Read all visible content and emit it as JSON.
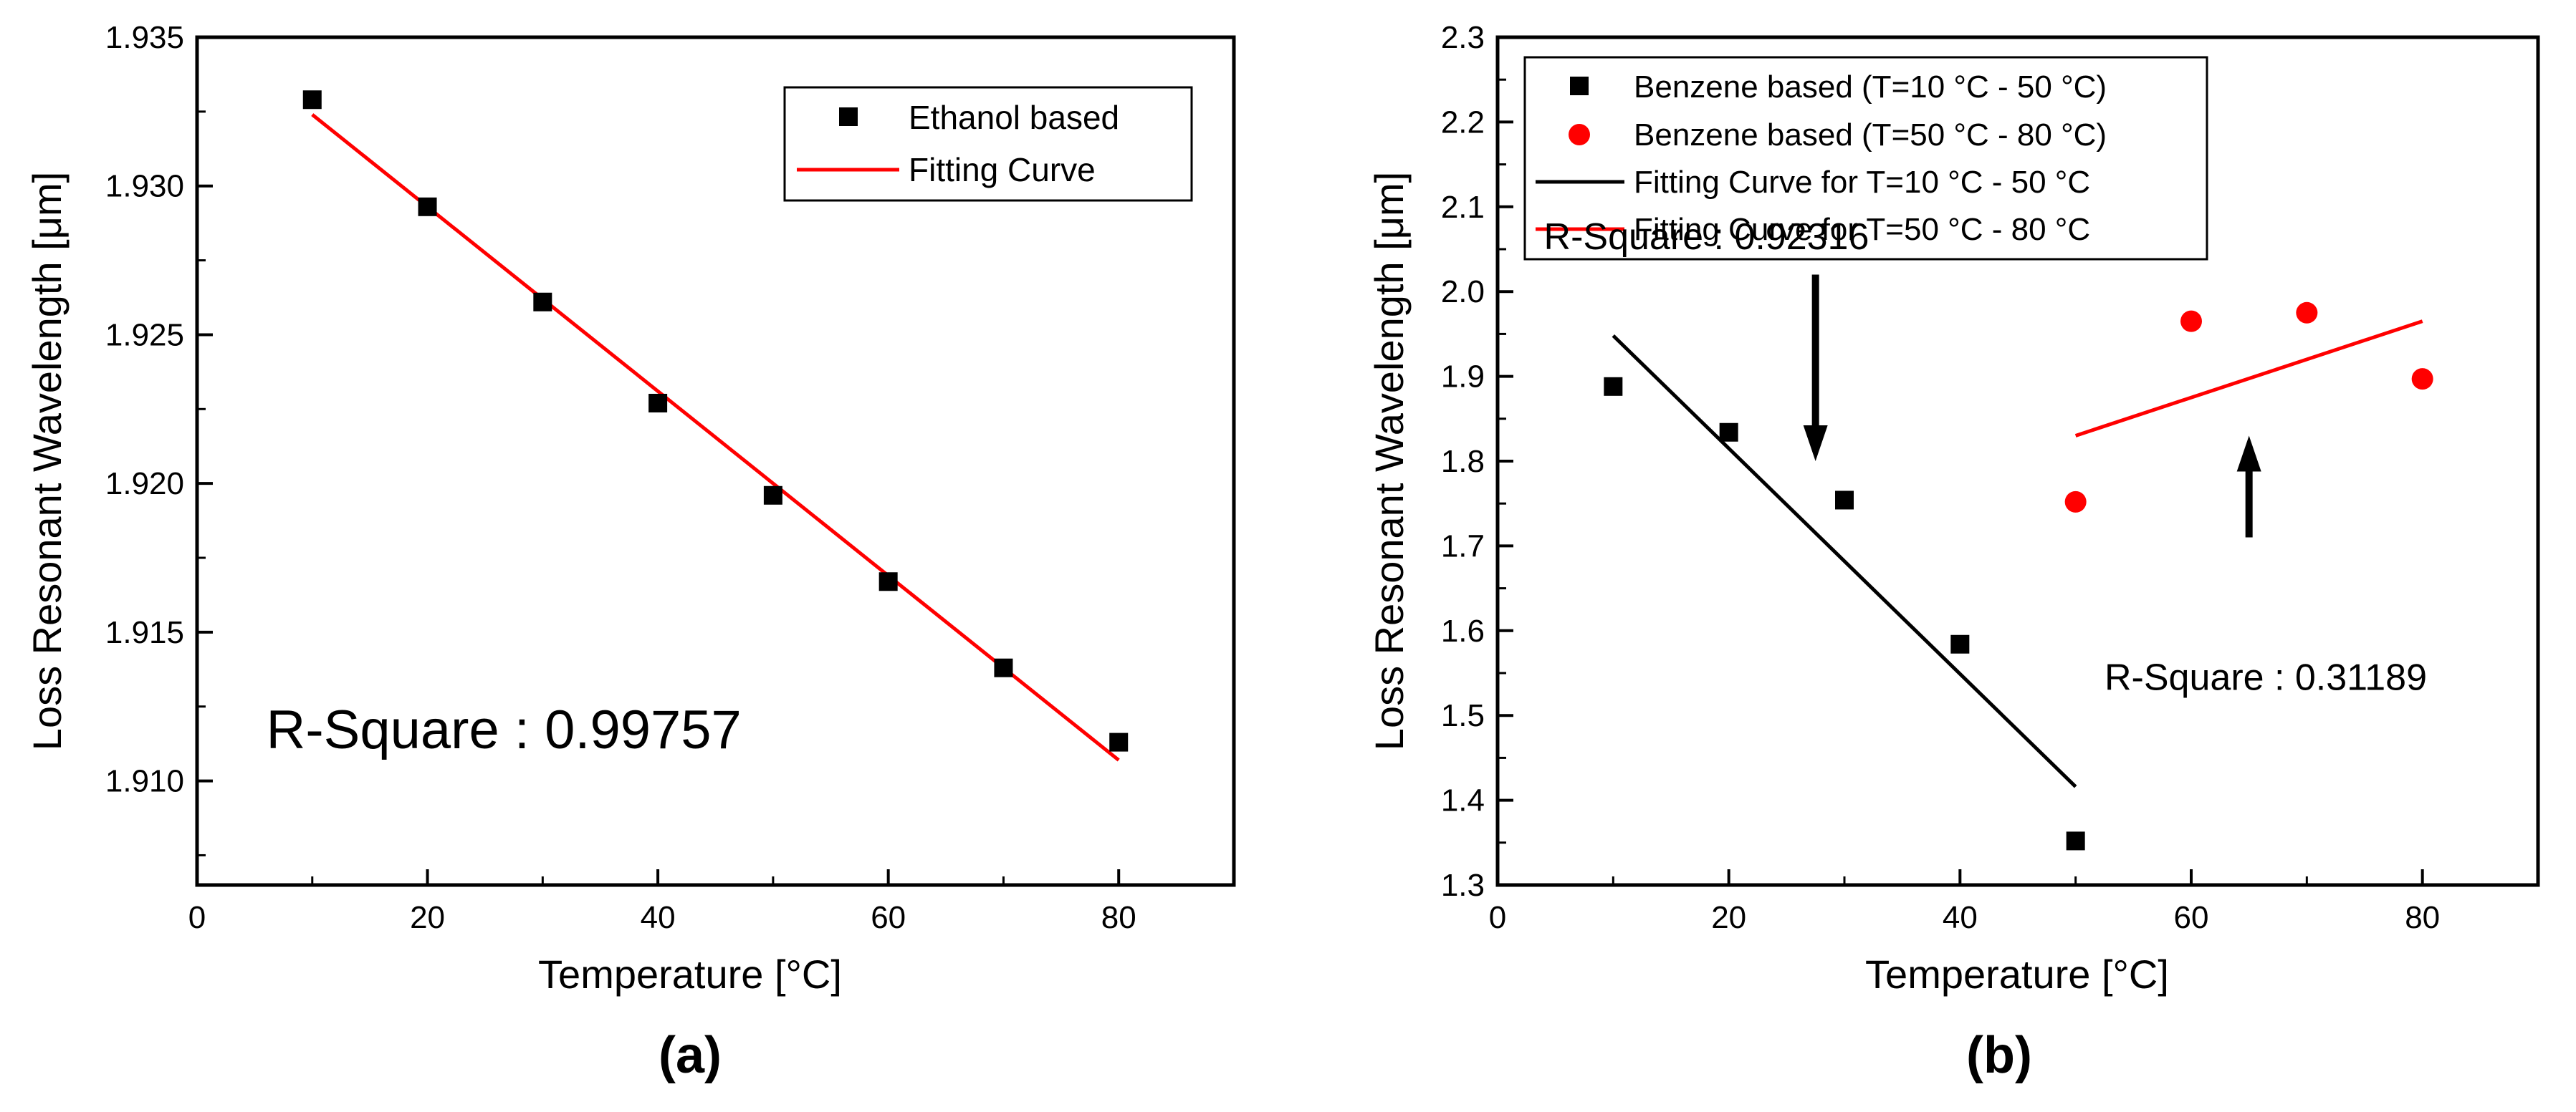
{
  "chart_data": [
    {
      "panel_label": "(a)",
      "type": "scatter",
      "xlabel": "Temperature [°C]",
      "ylabel": "Loss Resonant Wavelength [μm]",
      "xlim": [
        0,
        90
      ],
      "ylim": [
        1.9065,
        1.935
      ],
      "xticks": [
        0,
        20,
        40,
        60,
        80
      ],
      "yticks": [
        1.91,
        1.915,
        1.92,
        1.925,
        1.93,
        1.935
      ],
      "ytick_decimals": 3,
      "series": [
        {
          "name": "Ethanol based",
          "kind": "marker",
          "marker": "square",
          "color": "#000000",
          "x": [
            10,
            20,
            30,
            40,
            50,
            60,
            70,
            80
          ],
          "y": [
            1.9329,
            1.9293,
            1.9261,
            1.9227,
            1.9196,
            1.9167,
            1.9138,
            1.9113
          ]
        },
        {
          "name": "Fitting Curve",
          "kind": "line",
          "color": "#ff0000",
          "x": [
            10,
            80
          ],
          "y": [
            1.9324,
            1.9107
          ]
        }
      ],
      "annotations": [
        {
          "text": "R-Square : 0.99757",
          "x": 6,
          "y": 1.9111,
          "style": "big"
        }
      ],
      "legend_position": "top-right"
    },
    {
      "panel_label": "(b)",
      "type": "scatter",
      "xlabel": "Temperature [°C]",
      "ylabel": "Loss Resonant Wavelength [μm]",
      "xlim": [
        0,
        90
      ],
      "ylim": [
        1.3,
        2.3
      ],
      "xticks": [
        0,
        20,
        40,
        60,
        80
      ],
      "yticks": [
        1.3,
        1.4,
        1.5,
        1.6,
        1.7,
        1.8,
        1.9,
        2.0,
        2.1,
        2.2,
        2.3
      ],
      "ytick_decimals": 1,
      "series": [
        {
          "name": "Benzene based (T=10 °C - 50 °C)",
          "kind": "marker",
          "marker": "square",
          "color": "#000000",
          "x": [
            10,
            20,
            30,
            40,
            50
          ],
          "y": [
            1.888,
            1.834,
            1.754,
            1.584,
            1.352
          ]
        },
        {
          "name": "Benzene based (T=50 °C - 80 °C)",
          "kind": "marker",
          "marker": "circle",
          "color": "#ff0000",
          "x": [
            50,
            60,
            70,
            80
          ],
          "y": [
            1.752,
            1.965,
            1.975,
            1.897
          ]
        },
        {
          "name": "Fitting Curve for T=10 °C - 50 °C",
          "kind": "line",
          "color": "#000000",
          "x": [
            10,
            50
          ],
          "y": [
            1.948,
            1.416
          ]
        },
        {
          "name": "Fitting Curve for T=50 °C - 80 °C",
          "kind": "line",
          "color": "#ff0000",
          "x": [
            50,
            80
          ],
          "y": [
            1.83,
            1.965
          ]
        }
      ],
      "annotations": [
        {
          "text": "R-Square : 0.92316",
          "x": 4,
          "y": 2.05,
          "style": "normal"
        },
        {
          "text": "R-Square : 0.31189",
          "x": 52.5,
          "y": 1.53,
          "style": "normal"
        }
      ],
      "arrows": [
        {
          "x": 27.5,
          "y_from": 2.02,
          "y_to": 1.8,
          "name": "down-arrow"
        },
        {
          "x": 65,
          "y_from": 1.71,
          "y_to": 1.83,
          "name": "up-arrow"
        }
      ],
      "legend_position": "top-left"
    }
  ]
}
